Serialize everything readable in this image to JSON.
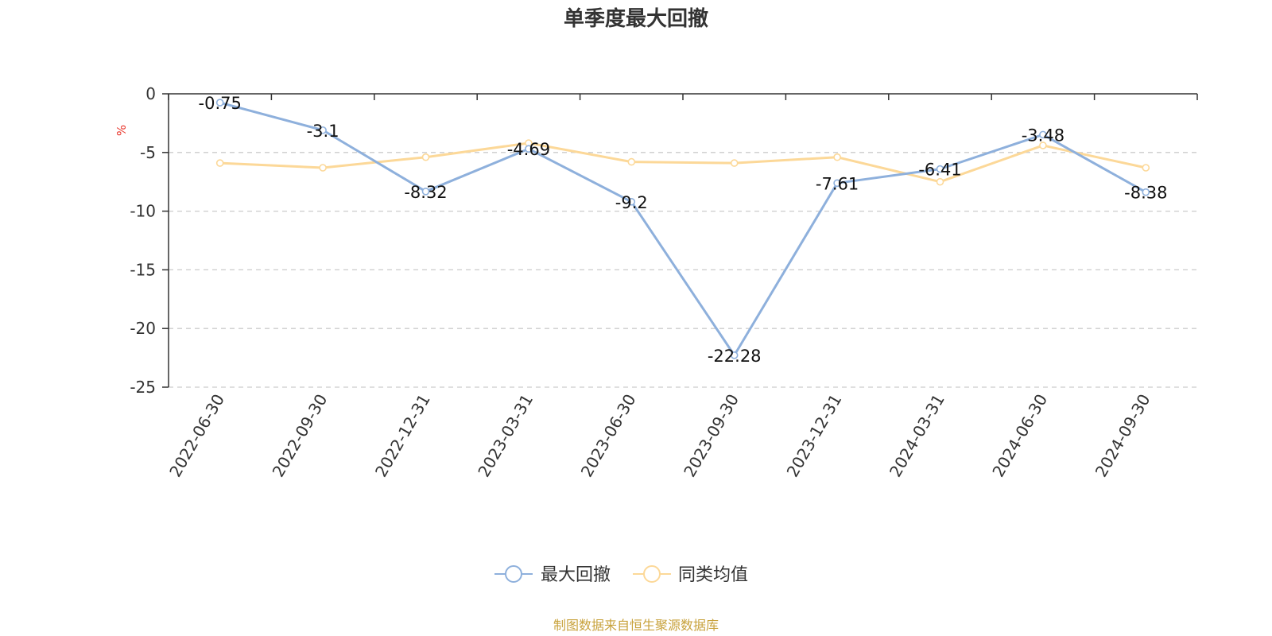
{
  "chart_data": {
    "type": "line",
    "title": "单季度最大回撤",
    "ylabel": "%",
    "ylim": [
      -25,
      0
    ],
    "yticks": [
      0,
      -5,
      -10,
      -15,
      -20,
      -25
    ],
    "categories": [
      "2022-06-30",
      "2022-09-30",
      "2022-12-31",
      "2023-03-31",
      "2023-06-30",
      "2023-09-30",
      "2023-12-31",
      "2024-03-31",
      "2024-06-30",
      "2024-09-30"
    ],
    "series": [
      {
        "name": "最大回撤",
        "color": "#8eb0dc",
        "values": [
          -0.75,
          -3.1,
          -8.32,
          -4.69,
          -9.2,
          -22.28,
          -7.61,
          -6.41,
          -3.48,
          -8.38
        ],
        "labels": [
          "-0.75",
          "-3.1",
          "-8.32",
          "-4.69",
          "-9.2",
          "-22.28",
          "-7.61",
          "-6.41",
          "-3.48",
          "-8.38"
        ]
      },
      {
        "name": "同类均值",
        "color": "#fcd898",
        "values": [
          -5.9,
          -6.3,
          -5.4,
          -4.2,
          -5.8,
          -5.9,
          -5.4,
          -7.5,
          -4.4,
          -6.3
        ]
      }
    ],
    "grid": "horizontal-dashed",
    "legend_position": "bottom-center",
    "source": "制图数据来自恒生聚源数据库"
  }
}
